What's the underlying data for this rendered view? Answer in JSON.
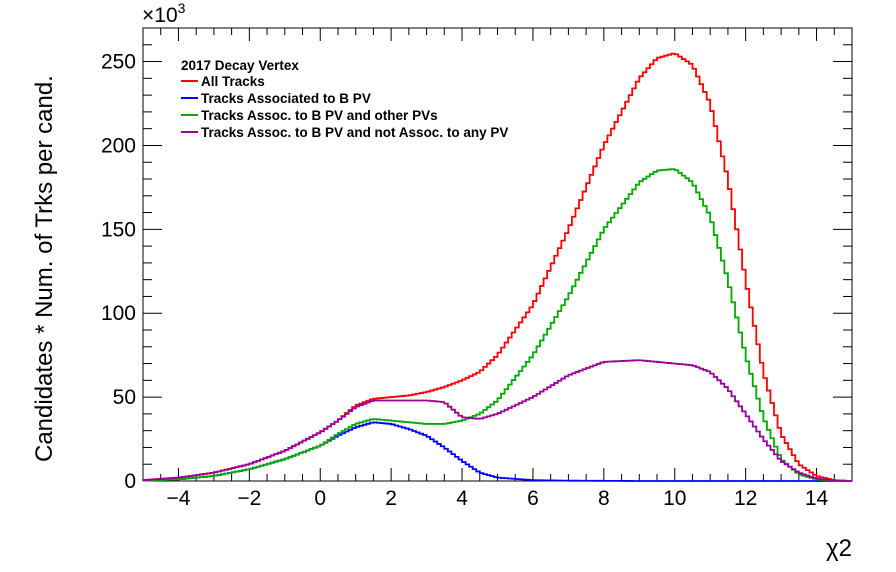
{
  "chart_data": {
    "type": "line",
    "drawstyle": "step",
    "xlabel": "χ2",
    "ylabel": "Candidates * Num. of Trks per cand.",
    "y_multiplier_label": "×10",
    "y_multiplier_exponent": "3",
    "xlim": [
      -5,
      15
    ],
    "ylim": [
      0,
      270
    ],
    "x_ticks": [
      -4,
      -2,
      0,
      2,
      4,
      6,
      8,
      10,
      12,
      14
    ],
    "y_ticks": [
      0,
      50,
      100,
      150,
      200,
      250
    ],
    "legend": {
      "title": "2017 Decay Vertex",
      "position": "top-left"
    },
    "x": [
      -5,
      -4,
      -3,
      -2,
      -1,
      0,
      0.5,
      1,
      1.5,
      2,
      2.5,
      3,
      3.5,
      4,
      4.5,
      5,
      6,
      7,
      8,
      9,
      9.5,
      10,
      10.5,
      11,
      11.5,
      12,
      12.5,
      13,
      13.5,
      14,
      14.5,
      15
    ],
    "series": [
      {
        "name": "All Tracks",
        "color": "#ff0000",
        "values": [
          0.5,
          2,
          5,
          10,
          18,
          29,
          36,
          45,
          49,
          50,
          51,
          53,
          56,
          60,
          65,
          75,
          105,
          150,
          200,
          240,
          252,
          255,
          248,
          225,
          180,
          120,
          65,
          28,
          10,
          3,
          0.5,
          0
        ]
      },
      {
        "name": "Tracks Associated to B PV",
        "color": "#0000ff",
        "values": [
          0.2,
          1,
          3,
          7,
          13,
          21,
          27,
          32,
          35,
          34,
          31,
          27,
          20,
          12,
          5,
          2,
          0.5,
          0.2,
          0.1,
          0,
          0,
          0,
          0,
          0,
          0,
          0,
          0,
          0,
          0,
          0,
          0,
          0
        ]
      },
      {
        "name": "Tracks Assoc. to B PV and other PVs",
        "color": "#00aa00",
        "values": [
          0.2,
          1,
          3,
          7,
          13,
          21,
          28,
          34,
          37,
          36,
          35,
          34,
          34,
          36,
          40,
          48,
          75,
          110,
          150,
          178,
          185,
          186,
          178,
          158,
          120,
          75,
          38,
          13,
          4,
          1,
          0.2,
          0
        ]
      },
      {
        "name": "Tracks Assoc. to B PV and not Assoc. to any PV",
        "color": "#990099",
        "values": [
          0.5,
          2,
          5,
          10,
          18,
          29,
          36,
          44,
          48,
          48,
          48,
          48,
          47,
          38,
          37,
          40,
          50,
          63,
          71,
          72,
          71,
          70,
          69,
          65,
          55,
          40,
          25,
          12,
          5,
          1.5,
          0.3,
          0
        ]
      }
    ]
  }
}
